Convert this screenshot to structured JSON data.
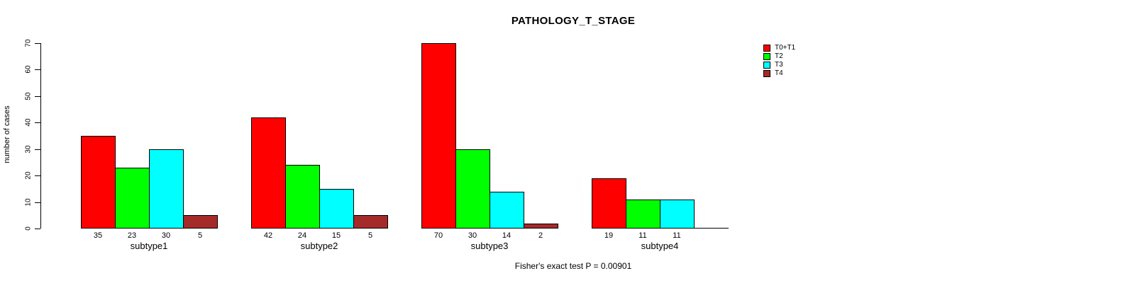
{
  "chart_data": {
    "type": "bar",
    "title": "PATHOLOGY_T_STAGE",
    "ylabel": "number of cases",
    "xlabel": "",
    "ylim": [
      0,
      70
    ],
    "yticks": [
      0,
      10,
      20,
      30,
      40,
      50,
      60,
      70
    ],
    "categories": [
      "subtype1",
      "subtype2",
      "subtype3",
      "subtype4"
    ],
    "series": [
      {
        "name": "T0+T1",
        "color": "#FF0000",
        "values": [
          35,
          42,
          70,
          19
        ]
      },
      {
        "name": "T2",
        "color": "#00FF00",
        "values": [
          23,
          24,
          30,
          11
        ]
      },
      {
        "name": "T3",
        "color": "#00FFFF",
        "values": [
          30,
          15,
          14,
          11
        ]
      },
      {
        "name": "T4",
        "color": "#A52A2A",
        "values": [
          5,
          5,
          2,
          0
        ]
      }
    ],
    "bar_value_labels": [
      [
        "35",
        "23",
        "30",
        "5"
      ],
      [
        "42",
        "24",
        "15",
        "5"
      ],
      [
        "70",
        "30",
        "14",
        "2"
      ],
      [
        "19",
        "11",
        "11",
        ""
      ]
    ],
    "annotation": "Fisher's exact test P = 0.00901",
    "legend_position": "right-top",
    "grid": false,
    "bar_border_color": "#000000",
    "background_color": "#FFFFFF"
  }
}
